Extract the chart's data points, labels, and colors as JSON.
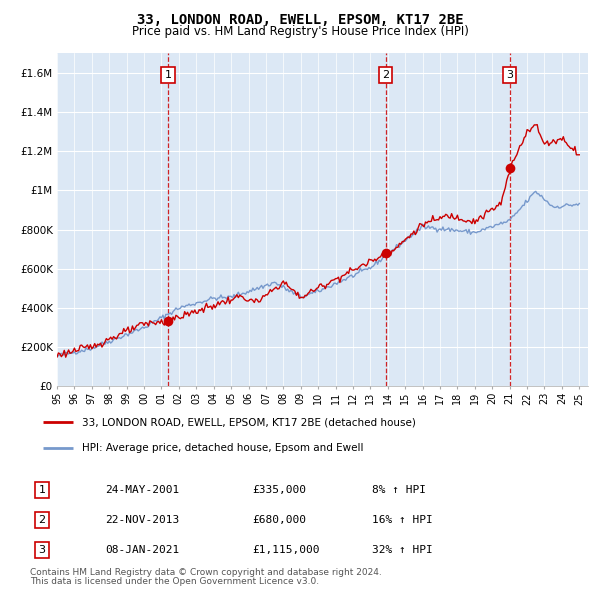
{
  "title": "33, LONDON ROAD, EWELL, EPSOM, KT17 2BE",
  "subtitle": "Price paid vs. HM Land Registry's House Price Index (HPI)",
  "sale_dates": [
    "2001-05-24",
    "2013-11-22",
    "2021-01-08"
  ],
  "sale_prices": [
    335000,
    680000,
    1115000
  ],
  "sale_labels": [
    "1",
    "2",
    "3"
  ],
  "sale_info": [
    [
      "1",
      "24-MAY-2001",
      "£335,000",
      "8% ↑ HPI"
    ],
    [
      "2",
      "22-NOV-2013",
      "£680,000",
      "16% ↑ HPI"
    ],
    [
      "3",
      "08-JAN-2021",
      "£1,115,000",
      "32% ↑ HPI"
    ]
  ],
  "legend_line1": "33, LONDON ROAD, EWELL, EPSOM, KT17 2BE (detached house)",
  "legend_line2": "HPI: Average price, detached house, Epsom and Ewell",
  "footer1": "Contains HM Land Registry data © Crown copyright and database right 2024.",
  "footer2": "This data is licensed under the Open Government Licence v3.0.",
  "ylim": [
    0,
    1700000
  ],
  "yticks": [
    0,
    200000,
    400000,
    600000,
    800000,
    1000000,
    1200000,
    1400000,
    1600000
  ],
  "ytick_labels": [
    "£0",
    "£200K",
    "£400K",
    "£600K",
    "£800K",
    "£1M",
    "£1.2M",
    "£1.4M",
    "£1.6M"
  ],
  "sale_color": "#cc0000",
  "hpi_color": "#7799cc",
  "dashed_color": "#cc0000",
  "bg_color": "#ffffff",
  "plot_bg_color": "#dce8f5"
}
